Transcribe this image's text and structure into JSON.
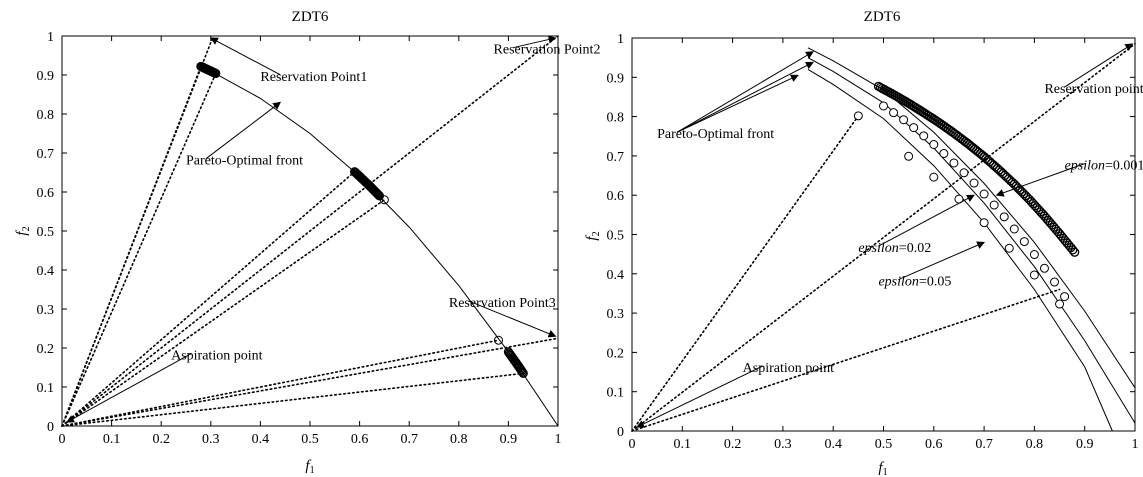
{
  "chart_data": [
    {
      "type": "line",
      "title": "ZDT6",
      "xlabel": "f1",
      "ylabel": "f2",
      "xlim": [
        0,
        1
      ],
      "ylim": [
        0,
        1
      ],
      "xticks": [
        "0",
        "0.1",
        "0.2",
        "0.3",
        "0.4",
        "0.5",
        "0.6",
        "0.7",
        "0.8",
        "0.9",
        "1"
      ],
      "yticks": [
        "0",
        "0.1",
        "0.2",
        "0.3",
        "0.4",
        "0.5",
        "0.6",
        "0.7",
        "0.8",
        "0.9",
        "1"
      ],
      "grid": false,
      "pareto_front": {
        "x": [
          0.28,
          0.3,
          0.4,
          0.5,
          0.6,
          0.7,
          0.8,
          0.9,
          1.0
        ],
        "y": [
          0.922,
          0.91,
          0.84,
          0.75,
          0.64,
          0.51,
          0.36,
          0.19,
          0.0
        ]
      },
      "solution_clusters": [
        {
          "x_range": [
            0.28,
            0.31
          ],
          "points": [
            [
              0.28,
              0.922
            ],
            [
              0.285,
              0.919
            ],
            [
              0.29,
              0.916
            ],
            [
              0.295,
              0.913
            ],
            [
              0.3,
              0.91
            ],
            [
              0.305,
              0.907
            ],
            [
              0.31,
              0.904
            ]
          ]
        },
        {
          "x_range": [
            0.59,
            0.64
          ],
          "points": [
            [
              0.59,
              0.652
            ],
            [
              0.6,
              0.64
            ],
            [
              0.61,
              0.628
            ],
            [
              0.62,
              0.616
            ],
            [
              0.63,
              0.603
            ],
            [
              0.64,
              0.59
            ]
          ]
        },
        {
          "x_range": [
            0.9,
            0.93
          ],
          "points": [
            [
              0.9,
              0.19
            ],
            [
              0.91,
              0.172
            ],
            [
              0.92,
              0.154
            ],
            [
              0.93,
              0.135
            ]
          ]
        }
      ],
      "open_markers": [
        [
          0.65,
          0.58
        ],
        [
          0.88,
          0.22
        ]
      ],
      "reference_lines": [
        {
          "x": [
            0,
            0.305
          ],
          "y": [
            0,
            1.0
          ]
        },
        {
          "x": [
            0,
            0.28
          ],
          "y": [
            0,
            0.922
          ]
        },
        {
          "x": [
            0,
            0.31
          ],
          "y": [
            0,
            0.904
          ]
        },
        {
          "x": [
            0,
            1.0
          ],
          "y": [
            0,
            1.0
          ]
        },
        {
          "x": [
            0,
            0.59
          ],
          "y": [
            0,
            0.652
          ]
        },
        {
          "x": [
            0,
            0.65
          ],
          "y": [
            0,
            0.58
          ]
        },
        {
          "x": [
            0,
            1.0
          ],
          "y": [
            0,
            0.225
          ]
        },
        {
          "x": [
            0,
            0.88
          ],
          "y": [
            0,
            0.22
          ]
        },
        {
          "x": [
            0,
            0.93
          ],
          "y": [
            0,
            0.135
          ]
        }
      ],
      "annotations": [
        {
          "text": "Reservation Point1",
          "tx": 0.4,
          "ty": 0.885,
          "ax": 0.3,
          "ay": 0.995
        },
        {
          "text": "Reservation Point2",
          "tx": 0.87,
          "ty": 0.955,
          "ax": 0.995,
          "ay": 0.995
        },
        {
          "text": "Pareto-Optimal front",
          "tx": 0.25,
          "ty": 0.67,
          "ax": 0.44,
          "ay": 0.83
        },
        {
          "text": "Reservation Point3",
          "tx": 0.78,
          "ty": 0.305,
          "ax": 0.995,
          "ay": 0.23
        },
        {
          "text": "Aspiration point",
          "tx": 0.22,
          "ty": 0.17,
          "ax": 0.01,
          "ay": 0.01
        }
      ]
    },
    {
      "type": "line",
      "title": "ZDT6",
      "xlabel": "f1",
      "ylabel": "f2",
      "xlim": [
        0,
        1
      ],
      "ylim": [
        0,
        1
      ],
      "xticks": [
        "0",
        "0.1",
        "0.2",
        "0.3",
        "0.4",
        "0.5",
        "0.6",
        "0.7",
        "0.8",
        "0.9",
        "1"
      ],
      "yticks": [
        "0",
        "0.1",
        "0.2",
        "0.3",
        "0.4",
        "0.5",
        "0.6",
        "0.7",
        "0.8",
        "0.9",
        "1"
      ],
      "grid": false,
      "pareto_fronts": [
        {
          "x": [
            0.35,
            0.4,
            0.5,
            0.6,
            0.7,
            0.8,
            0.9,
            1.0
          ],
          "y": [
            0.975,
            0.942,
            0.868,
            0.76,
            0.63,
            0.48,
            0.305,
            0.11
          ]
        },
        {
          "x": [
            0.35,
            0.4,
            0.5,
            0.6,
            0.7,
            0.8,
            0.9,
            1.0
          ],
          "y": [
            0.95,
            0.915,
            0.835,
            0.72,
            0.58,
            0.418,
            0.23,
            0.02
          ]
        },
        {
          "x": [
            0.35,
            0.4,
            0.5,
            0.6,
            0.7,
            0.8,
            0.9,
            0.955
          ],
          "y": [
            0.92,
            0.882,
            0.795,
            0.675,
            0.53,
            0.36,
            0.163,
            0.0
          ]
        }
      ],
      "series": [
        {
          "name": "epsilon=0.001",
          "marker": "dense",
          "x": [
            0.49,
            0.52,
            0.55,
            0.58,
            0.61,
            0.64,
            0.67,
            0.7,
            0.73,
            0.76,
            0.79,
            0.82,
            0.85,
            0.88
          ],
          "y": [
            0.877,
            0.856,
            0.834,
            0.81,
            0.785,
            0.758,
            0.729,
            0.698,
            0.664,
            0.628,
            0.589,
            0.547,
            0.502,
            0.455
          ]
        },
        {
          "name": "epsilon=0.02",
          "marker": "open-circle",
          "x": [
            0.5,
            0.52,
            0.54,
            0.56,
            0.58,
            0.6,
            0.62,
            0.64,
            0.66,
            0.68,
            0.7,
            0.72,
            0.74,
            0.76,
            0.78,
            0.8,
            0.82,
            0.84,
            0.86
          ],
          "y": [
            0.827,
            0.81,
            0.792,
            0.772,
            0.751,
            0.729,
            0.706,
            0.682,
            0.657,
            0.631,
            0.603,
            0.575,
            0.545,
            0.514,
            0.482,
            0.449,
            0.414,
            0.379,
            0.342
          ]
        },
        {
          "name": "epsilon=0.05",
          "marker": "open-circle",
          "x": [
            0.45,
            0.55,
            0.6,
            0.65,
            0.7,
            0.75,
            0.8,
            0.85
          ],
          "y": [
            0.802,
            0.699,
            0.646,
            0.59,
            0.53,
            0.465,
            0.397,
            0.323
          ]
        }
      ],
      "reference_lines": [
        {
          "x": [
            0,
            1.0
          ],
          "y": [
            0,
            0.985
          ]
        },
        {
          "x": [
            0,
            0.45
          ],
          "y": [
            0,
            0.802
          ]
        },
        {
          "x": [
            0,
            0.85
          ],
          "y": [
            0,
            0.36
          ]
        }
      ],
      "annotations": [
        {
          "text": "Pareto-Optimal front",
          "tx": 0.05,
          "ty": 0.745,
          "ax": [
            0.33,
            0.36,
            0.36
          ],
          "ay": [
            0.905,
            0.938,
            0.965
          ]
        },
        {
          "text": "Reservation point",
          "tx": 0.82,
          "ty": 0.86,
          "ax": 0.995,
          "ay": 0.985
        },
        {
          "text": "epsilon=0.001",
          "tx": 0.86,
          "ty": 0.665,
          "ax": 0.725,
          "ay": 0.6
        },
        {
          "text": "epsilon=0.02",
          "tx": 0.45,
          "ty": 0.455,
          "ax": 0.68,
          "ay": 0.6
        },
        {
          "text": "epsilon=0.05",
          "tx": 0.49,
          "ty": 0.37,
          "ax": 0.7,
          "ay": 0.48
        },
        {
          "text": "Aspiration point",
          "tx": 0.22,
          "ty": 0.15,
          "ax": 0.01,
          "ay": 0.01
        }
      ]
    }
  ]
}
